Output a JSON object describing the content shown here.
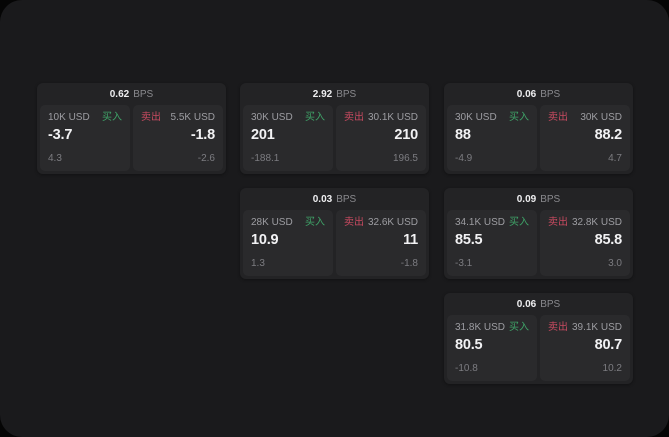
{
  "labels": {
    "bps_unit": "BPS",
    "buy": "买入",
    "sell": "卖出"
  },
  "colors": {
    "background": "#050505",
    "window": "#1a1a1c",
    "card": "#232325",
    "panel": "#2a2a2c",
    "buy_green": "#3fa368",
    "sell_red": "#c74a60",
    "primary_text": "#f2f2f4",
    "muted_text": "#8a8a8e"
  },
  "cards": [
    {
      "bps": "0.62",
      "buy": {
        "size": "10K USD",
        "price": "-3.7",
        "delta": "4.3"
      },
      "sell": {
        "size": "5.5K USD",
        "price": "-1.8",
        "delta": "-2.6"
      }
    },
    {
      "bps": "2.92",
      "buy": {
        "size": "30K USD",
        "price": "201",
        "delta": "-188.1"
      },
      "sell": {
        "size": "30.1K USD",
        "price": "210",
        "delta": "196.5"
      }
    },
    {
      "bps": "0.06",
      "buy": {
        "size": "30K USD",
        "price": "88",
        "delta": "-4.9"
      },
      "sell": {
        "size": "30K USD",
        "price": "88.2",
        "delta": "4.7"
      }
    },
    {
      "bps": "0.03",
      "buy": {
        "size": "28K USD",
        "price": "10.9",
        "delta": "1.3"
      },
      "sell": {
        "size": "32.6K USD",
        "price": "11",
        "delta": "-1.8"
      }
    },
    {
      "bps": "0.09",
      "buy": {
        "size": "34.1K USD",
        "price": "85.5",
        "delta": "-3.1"
      },
      "sell": {
        "size": "32.8K USD",
        "price": "85.8",
        "delta": "3.0"
      }
    },
    {
      "bps": "0.06",
      "buy": {
        "size": "31.8K USD",
        "price": "80.5",
        "delta": "-10.8"
      },
      "sell": {
        "size": "39.1K USD",
        "price": "80.7",
        "delta": "10.2"
      }
    }
  ]
}
